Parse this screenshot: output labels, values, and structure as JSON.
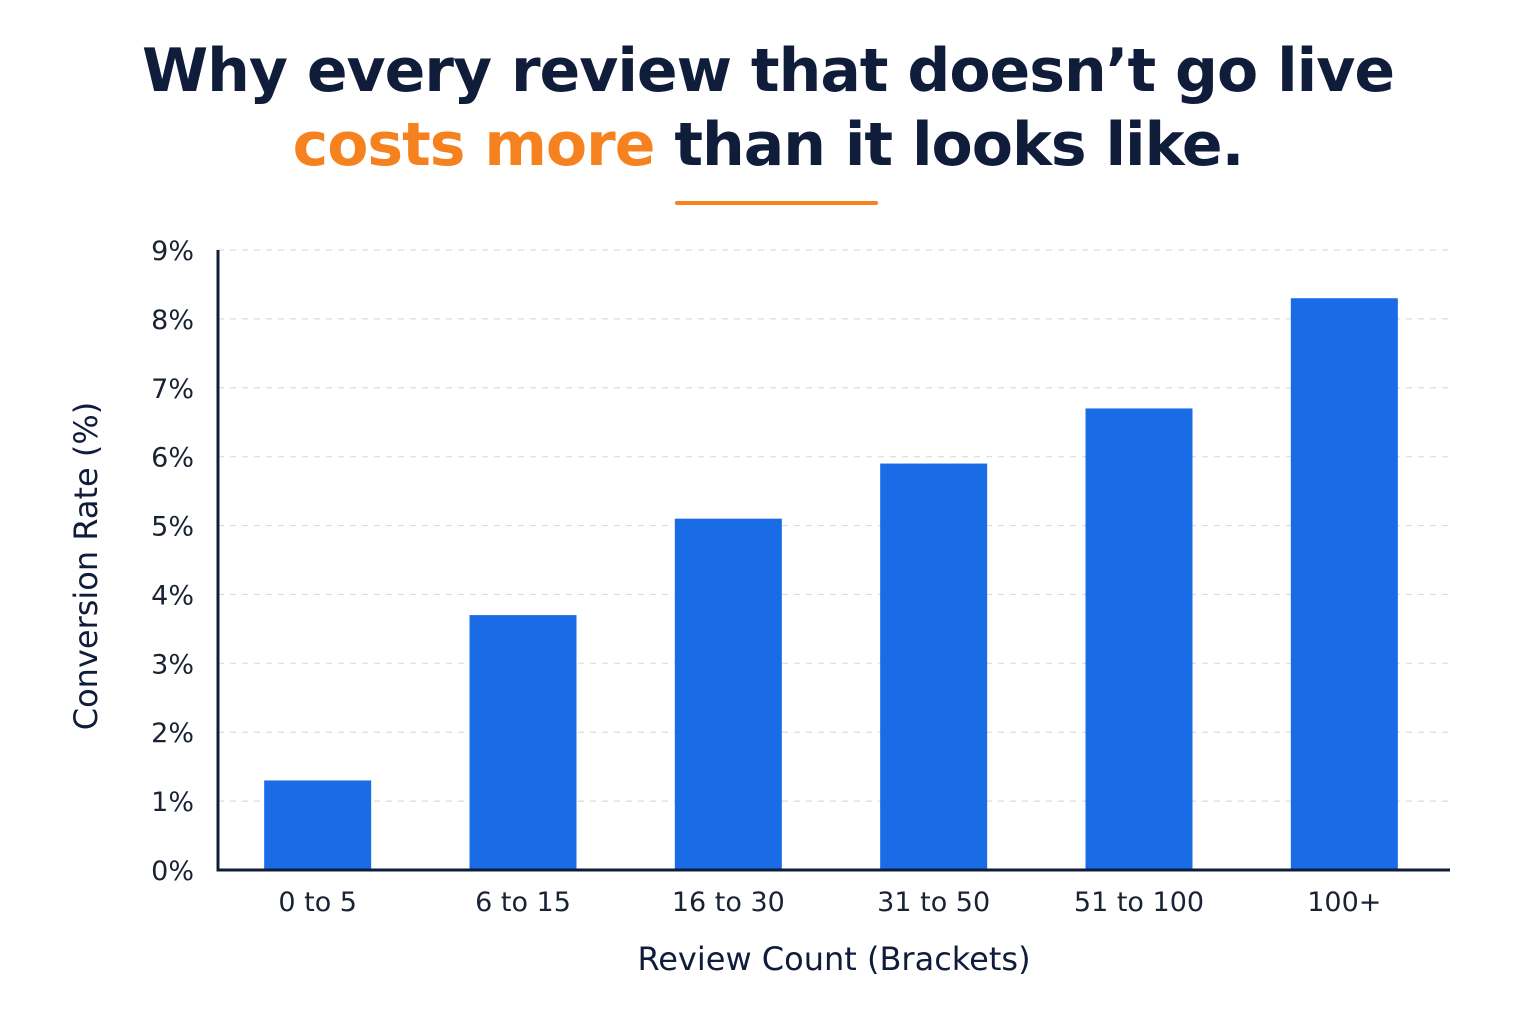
{
  "header": {
    "title_line1": "Why every review that doesn’t go live",
    "title_line2_highlight": "costs more",
    "title_line2_rest": " than it looks like."
  },
  "colors": {
    "bar": "#1a6be6",
    "title": "#0f1d3a",
    "accent": "#f5821f",
    "axis": "#0f1d3a",
    "grid": "#d9dce2"
  },
  "chart_data": {
    "type": "bar",
    "categories": [
      "0 to 5",
      "6 to 15",
      "16 to 30",
      "31 to 50",
      "51 to 100",
      "100+"
    ],
    "values": [
      1.3,
      3.7,
      5.1,
      5.9,
      6.7,
      8.3
    ],
    "xlabel": "Review Count (Brackets)",
    "ylabel": "Conversion Rate (%)",
    "ylim": [
      0,
      9
    ],
    "yticks": [
      "0%",
      "1%",
      "2%",
      "3%",
      "4%",
      "5%",
      "6%",
      "7%",
      "8%",
      "9%"
    ],
    "grid": true,
    "grid_style": "dashed-horizontal",
    "legend": "none"
  }
}
